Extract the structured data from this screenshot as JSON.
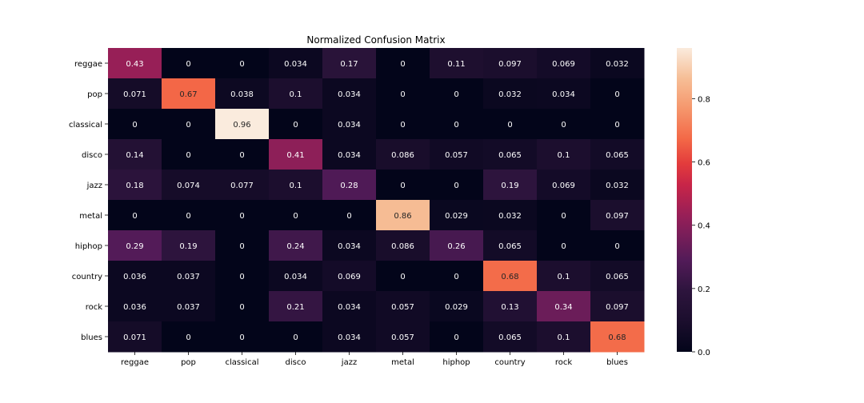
{
  "chart_data": {
    "type": "heatmap",
    "title": "Normalized Confusion Matrix",
    "xlabel": "",
    "ylabel": "",
    "row_labels": [
      "reggae",
      "pop",
      "classical",
      "disco",
      "jazz",
      "metal",
      "hiphop",
      "country",
      "rock",
      "blues"
    ],
    "col_labels": [
      "reggae",
      "pop",
      "classical",
      "disco",
      "jazz",
      "metal",
      "hiphop",
      "country",
      "rock",
      "blues"
    ],
    "values": [
      [
        0.43,
        0,
        0,
        0.034,
        0.17,
        0,
        0.11,
        0.097,
        0.069,
        0.032
      ],
      [
        0.071,
        0.67,
        0.038,
        0.1,
        0.034,
        0,
        0,
        0.032,
        0.034,
        0
      ],
      [
        0,
        0,
        0.96,
        0,
        0.034,
        0,
        0,
        0,
        0,
        0
      ],
      [
        0.14,
        0,
        0,
        0.41,
        0.034,
        0.086,
        0.057,
        0.065,
        0.1,
        0.065
      ],
      [
        0.18,
        0.074,
        0.077,
        0.1,
        0.28,
        0,
        0,
        0.19,
        0.069,
        0.032
      ],
      [
        0,
        0,
        0,
        0,
        0,
        0.86,
        0.029,
        0.032,
        0,
        0.097
      ],
      [
        0.29,
        0.19,
        0,
        0.24,
        0.034,
        0.086,
        0.26,
        0.065,
        0,
        0
      ],
      [
        0.036,
        0.037,
        0,
        0.034,
        0.069,
        0,
        0,
        0.68,
        0.1,
        0.065
      ],
      [
        0.036,
        0.037,
        0,
        0.21,
        0.034,
        0.057,
        0.029,
        0.13,
        0.34,
        0.097
      ],
      [
        0.071,
        0,
        0,
        0,
        0.034,
        0.057,
        0,
        0.065,
        0.1,
        0.68
      ]
    ],
    "colorbar": {
      "colormap": "rocket",
      "vmin": 0,
      "vmax": 0.96,
      "ticks": [
        0.0,
        0.2,
        0.4,
        0.6,
        0.8
      ],
      "tick_labels": [
        "0.0",
        "0.2",
        "0.4",
        "0.6",
        "0.8"
      ]
    },
    "grid": false
  }
}
